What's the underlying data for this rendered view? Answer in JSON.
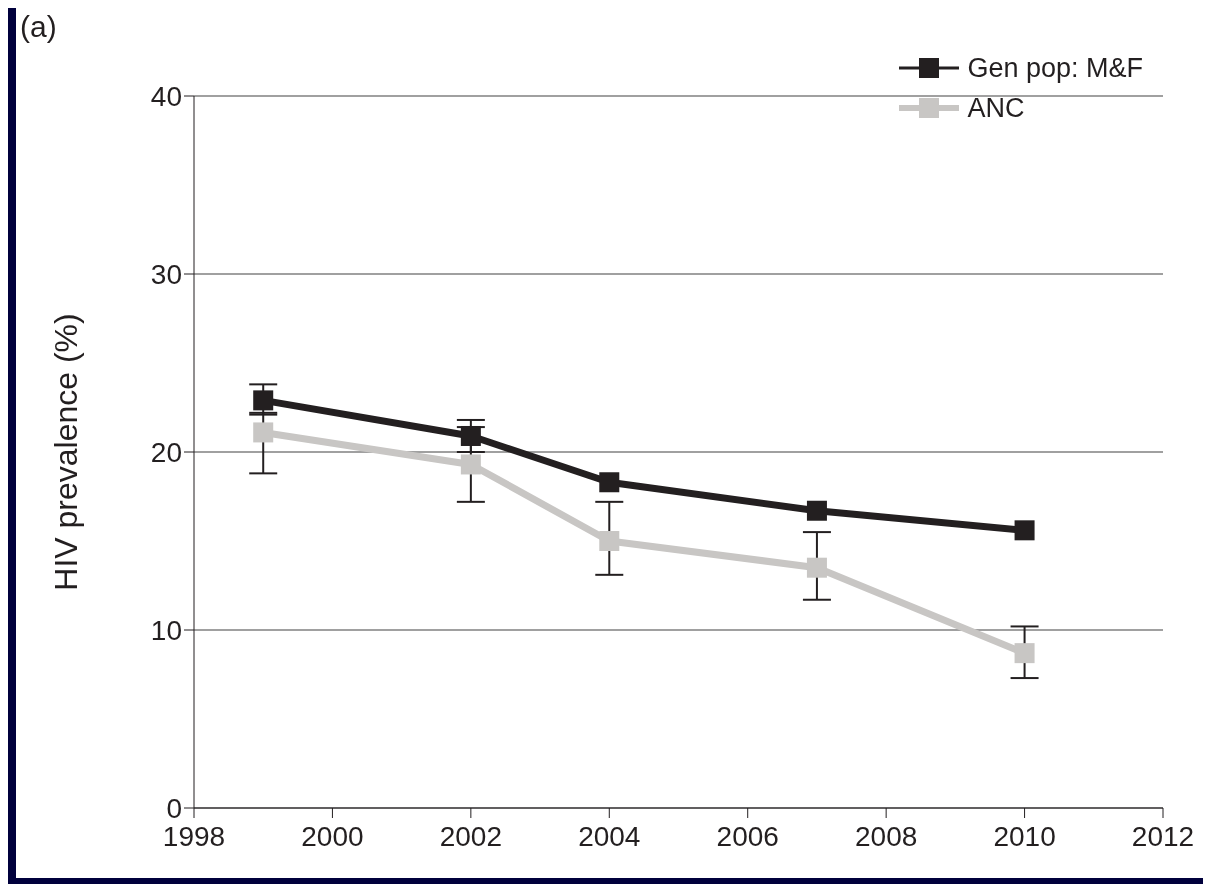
{
  "chart_data": {
    "type": "line",
    "ylabel": "HIV prevalence (%)",
    "annotations": [
      "(a)"
    ],
    "x": [
      1999,
      2002,
      2004,
      2007,
      2010
    ],
    "series": [
      {
        "name": "Gen pop: M&F",
        "color": "#231f20",
        "values": [
          22.9,
          20.9,
          18.3,
          16.7,
          15.6
        ],
        "errors": [
          [
            22.1,
            23.8
          ],
          [
            20.0,
            21.8
          ],
          null,
          null,
          null
        ]
      },
      {
        "name": "ANC",
        "color": "#c8c6c4",
        "values": [
          21.1,
          19.3,
          15.0,
          13.5,
          8.7
        ],
        "errors": [
          [
            18.8,
            22.2
          ],
          [
            17.2,
            21.4
          ],
          [
            13.1,
            17.2
          ],
          [
            11.7,
            15.5
          ],
          [
            7.3,
            10.2
          ]
        ]
      }
    ],
    "xlim": [
      1998,
      2012
    ],
    "xticks": [
      1998,
      2000,
      2002,
      2004,
      2006,
      2008,
      2010,
      2012
    ],
    "ylim": [
      0,
      40
    ],
    "yticks": [
      0,
      10,
      20,
      30,
      40
    ],
    "grid": "y",
    "legend": "top right",
    "marker": "square",
    "line_style": "solid"
  }
}
